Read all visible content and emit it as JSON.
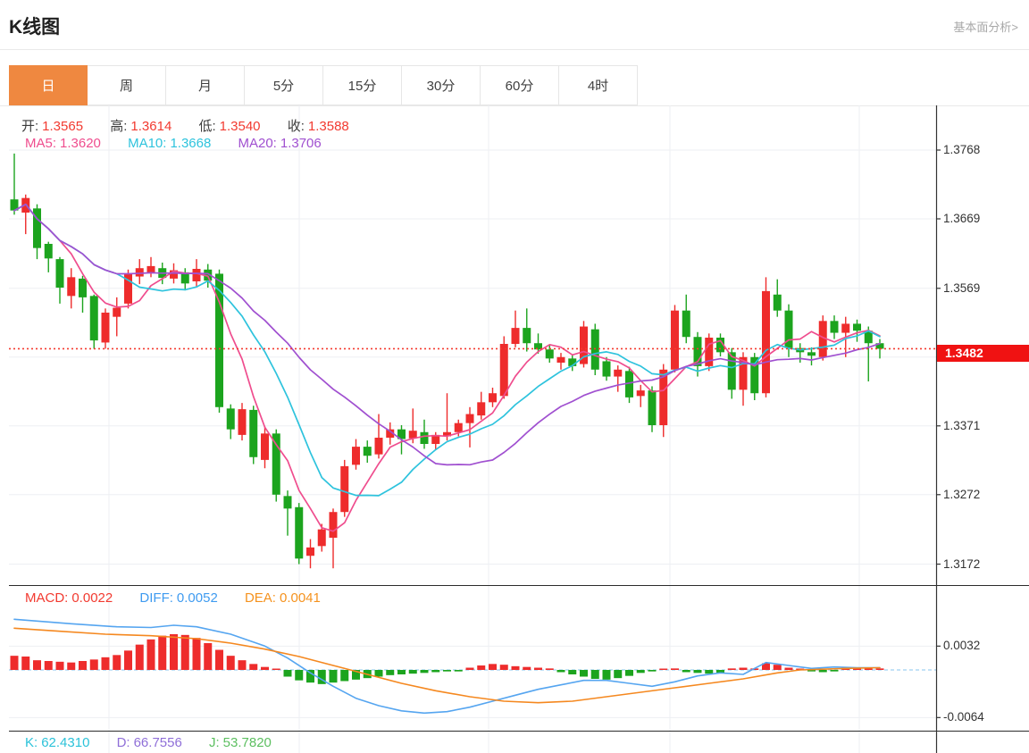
{
  "header": {
    "title": "K线图",
    "link": "基本面分析>"
  },
  "tabs": {
    "items": [
      {
        "key": "day",
        "label": "日",
        "active": true
      },
      {
        "key": "week",
        "label": "周",
        "active": false
      },
      {
        "key": "month",
        "label": "月",
        "active": false
      },
      {
        "key": "5min",
        "label": "5分",
        "active": false
      },
      {
        "key": "15min",
        "label": "15分",
        "active": false
      },
      {
        "key": "30min",
        "label": "30分",
        "active": false
      },
      {
        "key": "60min",
        "label": "60分",
        "active": false
      },
      {
        "key": "4hour",
        "label": "4时",
        "active": false
      }
    ]
  },
  "ohlc_legend": {
    "open_label": "开:",
    "open": "1.3565",
    "high_label": "高:",
    "high": "1.3614",
    "low_label": "低:",
    "low": "1.3540",
    "close_label": "收:",
    "close": "1.3588"
  },
  "ma_legend": {
    "ma5_label": "MA5:",
    "ma5": "1.3620",
    "ma10_label": "MA10:",
    "ma10": "1.3668",
    "ma20_label": "MA20:",
    "ma20": "1.3706"
  },
  "macd_legend": {
    "macd_label": "MACD:",
    "macd": "0.0022",
    "diff_label": "DIFF:",
    "diff": "0.0052",
    "dea_label": "DEA:",
    "dea": "0.0041"
  },
  "kdj_legend": {
    "k_label": "K:",
    "k": "62.4310",
    "d_label": "D:",
    "d": "66.7556",
    "j_label": "J:",
    "j": "53.7820"
  },
  "colors": {
    "up": "#ee2c2c",
    "down": "#1ca41e",
    "ma5": "#ef4d8e",
    "ma10": "#2ec3dd",
    "ma20": "#a050d0",
    "diff": "#55a5f0",
    "dea": "#f5881f",
    "grid": "#edeff3",
    "axis": "#333333",
    "price_line": "#f5392e",
    "badge_bg": "#f01212",
    "zero_dash": "#9fd0f2",
    "tab_accent": "#ef8840"
  },
  "chart_data": [
    {
      "type": "candlestick",
      "title": "K线图 日K",
      "y_ticks": [
        "1.3768",
        "1.3669",
        "1.3569",
        "1.3470",
        "1.3371",
        "1.3272",
        "1.3172"
      ],
      "y_range": [
        1.3142,
        1.3832
      ],
      "grid": true,
      "last_price": "1.3482",
      "last_price_value": 1.3482,
      "ma_periods": [
        5,
        10,
        20
      ],
      "ohlc": [
        [
          1.3697,
          1.3763,
          1.3675,
          1.3681
        ],
        [
          1.3678,
          1.3704,
          1.3647,
          1.3699
        ],
        [
          1.3684,
          1.369,
          1.3611,
          1.3627
        ],
        [
          1.3633,
          1.3636,
          1.3592,
          1.3612
        ],
        [
          1.3611,
          1.3614,
          1.3547,
          1.357
        ],
        [
          1.3558,
          1.3598,
          1.354,
          1.3585
        ],
        [
          1.3583,
          1.3587,
          1.3534,
          1.3556
        ],
        [
          1.3558,
          1.356,
          1.3482,
          1.3494
        ],
        [
          1.3491,
          1.354,
          1.3482,
          1.3534
        ],
        [
          1.3528,
          1.3556,
          1.35,
          1.3541
        ],
        [
          1.3547,
          1.3596,
          1.354,
          1.359
        ],
        [
          1.3586,
          1.3611,
          1.3575,
          1.3598
        ],
        [
          1.3591,
          1.3614,
          1.3585,
          1.3601
        ],
        [
          1.3598,
          1.3606,
          1.3575,
          1.3584
        ],
        [
          1.3583,
          1.3605,
          1.3576,
          1.3595
        ],
        [
          1.3592,
          1.3598,
          1.3566,
          1.3576
        ],
        [
          1.3579,
          1.3611,
          1.3572,
          1.3597
        ],
        [
          1.3596,
          1.3604,
          1.357,
          1.358
        ],
        [
          1.359,
          1.3596,
          1.339,
          1.3398
        ],
        [
          1.3396,
          1.3402,
          1.3352,
          1.3366
        ],
        [
          1.3358,
          1.3404,
          1.335,
          1.3395
        ],
        [
          1.3394,
          1.34,
          1.3316,
          1.3326
        ],
        [
          1.3322,
          1.337,
          1.331,
          1.336
        ],
        [
          1.336,
          1.3366,
          1.3262,
          1.3272
        ],
        [
          1.327,
          1.3278,
          1.3213,
          1.3252
        ],
        [
          1.3254,
          1.326,
          1.3172,
          1.318
        ],
        [
          1.3184,
          1.3208,
          1.3166,
          1.3196
        ],
        [
          1.3198,
          1.323,
          1.319,
          1.3222
        ],
        [
          1.321,
          1.3252,
          1.3166,
          1.3247
        ],
        [
          1.3247,
          1.3322,
          1.324,
          1.3313
        ],
        [
          1.3315,
          1.3352,
          1.3308,
          1.3341
        ],
        [
          1.3341,
          1.335,
          1.3318,
          1.3328
        ],
        [
          1.333,
          1.3388,
          1.3324,
          1.3354
        ],
        [
          1.3354,
          1.3376,
          1.3344,
          1.3366
        ],
        [
          1.3366,
          1.3372,
          1.333,
          1.3352
        ],
        [
          1.3353,
          1.3396,
          1.3346,
          1.3364
        ],
        [
          1.3362,
          1.338,
          1.3338,
          1.3345
        ],
        [
          1.3345,
          1.3362,
          1.3336,
          1.3358
        ],
        [
          1.3356,
          1.3418,
          1.335,
          1.3362
        ],
        [
          1.3362,
          1.338,
          1.3356,
          1.3375
        ],
        [
          1.3375,
          1.3398,
          1.334,
          1.3388
        ],
        [
          1.3386,
          1.342,
          1.338,
          1.3405
        ],
        [
          1.3405,
          1.3426,
          1.3398,
          1.3418
        ],
        [
          1.3414,
          1.35,
          1.341,
          1.3489
        ],
        [
          1.3489,
          1.3537,
          1.3484,
          1.3512
        ],
        [
          1.3512,
          1.354,
          1.3478,
          1.349
        ],
        [
          1.349,
          1.3504,
          1.3475,
          1.3481
        ],
        [
          1.3481,
          1.3488,
          1.3462,
          1.3468
        ],
        [
          1.3462,
          1.3476,
          1.3452,
          1.347
        ],
        [
          1.3468,
          1.3474,
          1.345,
          1.3457
        ],
        [
          1.346,
          1.3522,
          1.3455,
          1.3514
        ],
        [
          1.351,
          1.3518,
          1.3444,
          1.3452
        ],
        [
          1.3464,
          1.347,
          1.3436,
          1.3442
        ],
        [
          1.3442,
          1.3458,
          1.342,
          1.3452
        ],
        [
          1.345,
          1.3456,
          1.3404,
          1.3412
        ],
        [
          1.3414,
          1.343,
          1.3398,
          1.3422
        ],
        [
          1.3422,
          1.3428,
          1.3362,
          1.3372
        ],
        [
          1.3372,
          1.346,
          1.3355,
          1.3452
        ],
        [
          1.3452,
          1.3545,
          1.3448,
          1.3537
        ],
        [
          1.3537,
          1.356,
          1.349,
          1.3499
        ],
        [
          1.3499,
          1.3506,
          1.3442,
          1.3457
        ],
        [
          1.3457,
          1.3504,
          1.345,
          1.3498
        ],
        [
          1.3498,
          1.3504,
          1.3471,
          1.3477
        ],
        [
          1.3477,
          1.3483,
          1.341,
          1.3423
        ],
        [
          1.3423,
          1.3477,
          1.34,
          1.347
        ],
        [
          1.347,
          1.3476,
          1.3408,
          1.3418
        ],
        [
          1.3418,
          1.3585,
          1.3412,
          1.3565
        ],
        [
          1.356,
          1.3582,
          1.3528,
          1.3537
        ],
        [
          1.3537,
          1.3546,
          1.347,
          1.3483
        ],
        [
          1.3483,
          1.349,
          1.3462,
          1.3477
        ],
        [
          1.3477,
          1.3484,
          1.3458,
          1.3472
        ],
        [
          1.347,
          1.353,
          1.3465,
          1.3522
        ],
        [
          1.3522,
          1.353,
          1.3496,
          1.3505
        ],
        [
          1.3505,
          1.3528,
          1.347,
          1.3518
        ],
        [
          1.3518,
          1.3524,
          1.3492,
          1.3508
        ],
        [
          1.3508,
          1.3514,
          1.3435,
          1.349
        ],
        [
          1.349,
          1.3496,
          1.3468,
          1.3482
        ]
      ]
    },
    {
      "type": "bar",
      "title": "MACD",
      "y_ticks": [
        "0.0032",
        "-0.0064"
      ],
      "y_range": [
        -0.0086,
        0.0114
      ],
      "zero_line_dashed": true,
      "values": [
        0.0019,
        0.0018,
        0.0013,
        0.0012,
        0.0011,
        0.001,
        0.0012,
        0.0014,
        0.0017,
        0.002,
        0.0026,
        0.0034,
        0.0041,
        0.0046,
        0.0048,
        0.0047,
        0.0043,
        0.0036,
        0.0027,
        0.0019,
        0.0013,
        0.0008,
        0.0004,
        0.0001,
        -0.0009,
        -0.0014,
        -0.0017,
        -0.0019,
        -0.0017,
        -0.0015,
        -0.0013,
        -0.0011,
        -0.0009,
        -0.0007,
        -0.0006,
        -0.0005,
        -0.0004,
        -0.0003,
        -0.0002,
        -0.0002,
        0.0003,
        0.0006,
        0.0008,
        0.0007,
        0.0005,
        0.0004,
        0.0003,
        0.0002,
        -0.0003,
        -0.0006,
        -0.0009,
        -0.0012,
        -0.0013,
        -0.0011,
        -0.0008,
        -0.0004,
        -0.0002,
        0.0001,
        0.0002,
        -0.0003,
        -0.0004,
        -0.0005,
        -0.0004,
        0.0002,
        0.0003,
        0.0002,
        0.0009,
        0.0007,
        0.0003,
        0.0001,
        -0.0002,
        -0.0003,
        -0.0002,
        0.0004,
        0.0003,
        0.0002,
        0.0002
      ],
      "series": [
        {
          "name": "DIFF",
          "points": [
            [
              1,
              0.0068
            ],
            [
              6,
              0.0062
            ],
            [
              10,
              0.0058
            ],
            [
              13,
              0.0057
            ],
            [
              15,
              0.006
            ],
            [
              17,
              0.0058
            ],
            [
              20,
              0.0048
            ],
            [
              23,
              0.0032
            ],
            [
              25,
              0.0016
            ],
            [
              27,
              -0.0004
            ],
            [
              29,
              -0.0022
            ],
            [
              31,
              -0.0038
            ],
            [
              33,
              -0.0048
            ],
            [
              35,
              -0.0055
            ],
            [
              37,
              -0.0058
            ],
            [
              39,
              -0.0056
            ],
            [
              41,
              -0.005
            ],
            [
              43,
              -0.0042
            ],
            [
              45,
              -0.0034
            ],
            [
              47,
              -0.0026
            ],
            [
              49,
              -0.002
            ],
            [
              51,
              -0.0014
            ],
            [
              53,
              -0.0014
            ],
            [
              55,
              -0.0018
            ],
            [
              57,
              -0.0022
            ],
            [
              59,
              -0.0016
            ],
            [
              61,
              -0.0008
            ],
            [
              63,
              -0.0004
            ],
            [
              65,
              -0.0006
            ],
            [
              67,
              0.001
            ],
            [
              69,
              0.0006
            ],
            [
              71,
              0.0002
            ],
            [
              73,
              0.0004
            ],
            [
              75,
              0.0003
            ],
            [
              77,
              0.0003
            ]
          ]
        },
        {
          "name": "DEA",
          "points": [
            [
              1,
              0.0056
            ],
            [
              5,
              0.0052
            ],
            [
              9,
              0.0048
            ],
            [
              13,
              0.0046
            ],
            [
              17,
              0.0042
            ],
            [
              20,
              0.0036
            ],
            [
              23,
              0.0028
            ],
            [
              26,
              0.0018
            ],
            [
              29,
              0.0006
            ],
            [
              32,
              -0.0006
            ],
            [
              35,
              -0.0018
            ],
            [
              38,
              -0.0028
            ],
            [
              41,
              -0.0036
            ],
            [
              44,
              -0.0042
            ],
            [
              47,
              -0.0044
            ],
            [
              50,
              -0.0042
            ],
            [
              53,
              -0.0036
            ],
            [
              56,
              -0.003
            ],
            [
              59,
              -0.0024
            ],
            [
              62,
              -0.0018
            ],
            [
              65,
              -0.0012
            ],
            [
              68,
              -0.0004
            ],
            [
              70,
              0.0
            ],
            [
              72,
              0.0001
            ],
            [
              74,
              0.0002
            ],
            [
              77,
              0.0003
            ]
          ]
        }
      ]
    }
  ]
}
